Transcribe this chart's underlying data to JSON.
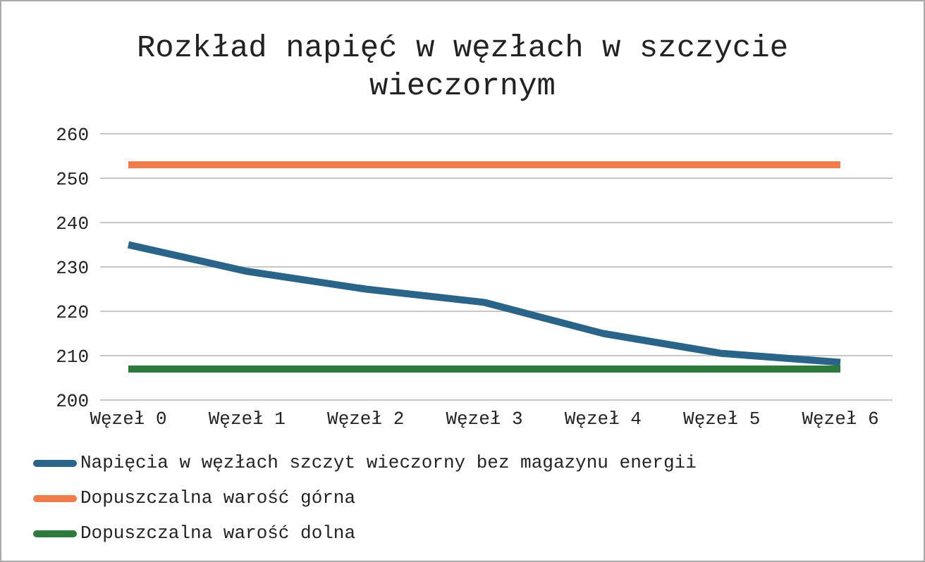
{
  "chart_data": {
    "type": "line",
    "title": "Rozkład napięć w węzłach w szczycie wieczornym",
    "categories": [
      "Węzeł 0",
      "Węzeł 1",
      "Węzeł 2",
      "Węzeł 3",
      "Węzeł 4",
      "Węzeł 5",
      "Węzeł 6"
    ],
    "series": [
      {
        "name": "Napięcia w węzłach szczyt wieczorny bez magazynu energii",
        "color": "#2a6489",
        "values": [
          235,
          229,
          225,
          222,
          215,
          210.5,
          208.5
        ]
      },
      {
        "name": "Dopuszczalna warość górna",
        "color": "#f07c4c",
        "values": [
          253,
          253,
          253,
          253,
          253,
          253,
          253
        ]
      },
      {
        "name": "Dopuszczalna warość dolna",
        "color": "#2d7a3c",
        "values": [
          207,
          207,
          207,
          207,
          207,
          207,
          207
        ]
      }
    ],
    "ylim": [
      200,
      260
    ],
    "yticks": [
      200,
      210,
      220,
      230,
      240,
      250,
      260
    ],
    "grid": "y",
    "legend": "bottom",
    "marker": "none",
    "line_style": "solid"
  }
}
